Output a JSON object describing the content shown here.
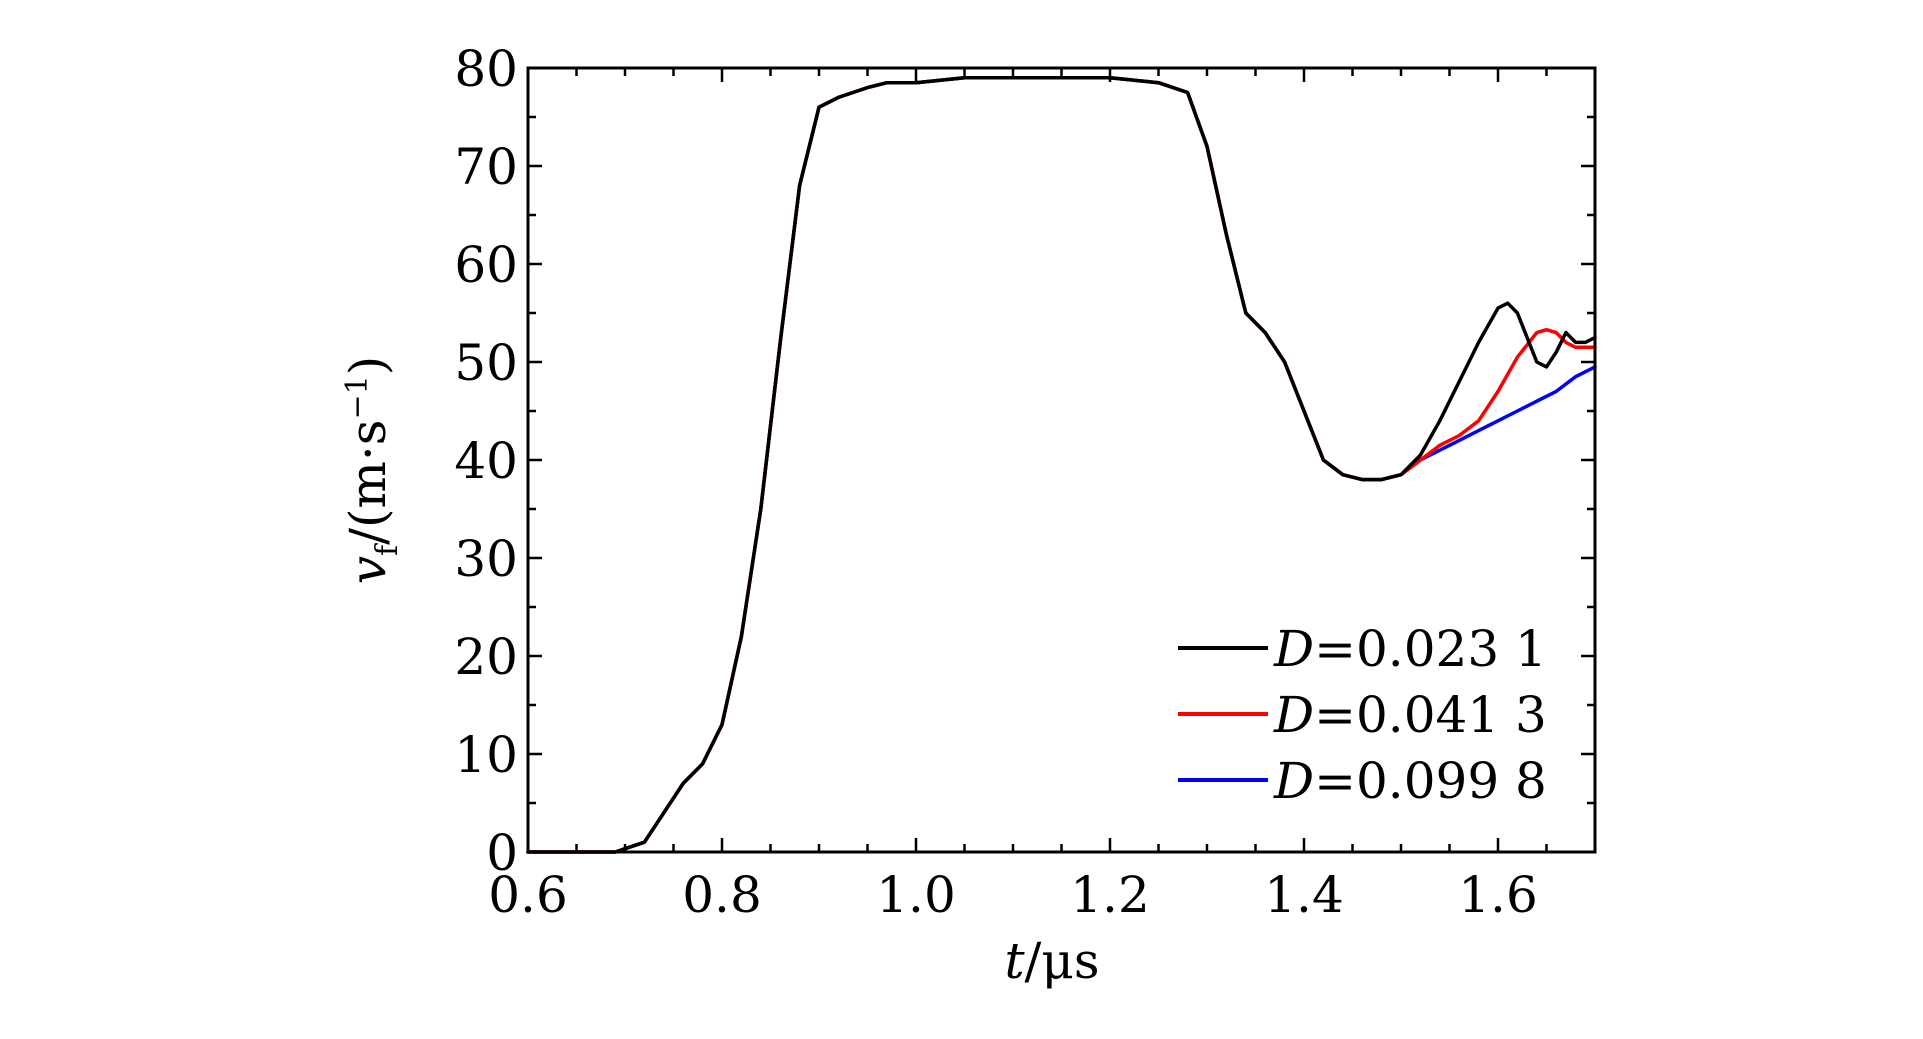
{
  "chart_data": {
    "type": "line",
    "xlabel": {
      "var": "t",
      "unit": "/μs"
    },
    "ylabel": {
      "var": "v",
      "sub": "f",
      "unit_pre": "/(m·s",
      "unit_sup": "−1",
      "unit_post": ")"
    },
    "xlim": [
      0.6,
      1.7
    ],
    "ylim": [
      0,
      80
    ],
    "xticks": [
      0.6,
      0.8,
      1.0,
      1.2,
      1.4,
      1.6
    ],
    "xtick_labels": [
      "0.6",
      "0.8",
      "1.0",
      "1.2",
      "1.4",
      "1.6"
    ],
    "yticks": [
      0,
      10,
      20,
      30,
      40,
      50,
      60,
      70,
      80
    ],
    "ytick_labels": [
      "0",
      "10",
      "20",
      "30",
      "40",
      "50",
      "60",
      "70",
      "80"
    ],
    "grid": false,
    "legend_position": "bottom-right",
    "series": [
      {
        "name": "D=0.023 1",
        "label_var": "D",
        "label_value": "=0.023 1",
        "color": "#000000",
        "x": [
          0.6,
          0.69,
          0.72,
          0.74,
          0.76,
          0.78,
          0.8,
          0.82,
          0.84,
          0.86,
          0.88,
          0.9,
          0.92,
          0.95,
          0.97,
          1.0,
          1.05,
          1.1,
          1.15,
          1.2,
          1.25,
          1.28,
          1.3,
          1.32,
          1.34,
          1.36,
          1.38,
          1.4,
          1.42,
          1.44,
          1.46,
          1.48,
          1.5,
          1.52,
          1.54,
          1.56,
          1.58,
          1.6,
          1.61,
          1.62,
          1.63,
          1.64,
          1.65,
          1.66,
          1.67,
          1.68,
          1.69,
          1.7
        ],
        "y": [
          0,
          0,
          1,
          4,
          7,
          9,
          13,
          22,
          35,
          52,
          68,
          76,
          77,
          78,
          78.5,
          78.5,
          79,
          79,
          79,
          79,
          78.5,
          77.5,
          72,
          63,
          55,
          53,
          50,
          45,
          40,
          38.5,
          38,
          38,
          38.5,
          40.5,
          44,
          48,
          52,
          55.5,
          56,
          55,
          52.5,
          50,
          49.5,
          51,
          53,
          52,
          52,
          52.5
        ]
      },
      {
        "name": "D=0.041 3",
        "label_var": "D",
        "label_value": "=0.041 3",
        "color": "#ff0000",
        "x": [
          0.6,
          0.69,
          0.72,
          0.74,
          0.76,
          0.78,
          0.8,
          0.82,
          0.84,
          0.86,
          0.88,
          0.9,
          0.92,
          0.95,
          0.97,
          1.0,
          1.05,
          1.1,
          1.15,
          1.2,
          1.25,
          1.28,
          1.3,
          1.32,
          1.34,
          1.36,
          1.38,
          1.4,
          1.42,
          1.44,
          1.46,
          1.48,
          1.5,
          1.52,
          1.54,
          1.56,
          1.58,
          1.6,
          1.62,
          1.64,
          1.65,
          1.66,
          1.67,
          1.68,
          1.7
        ],
        "y": [
          0,
          0,
          1,
          4,
          7,
          9,
          13,
          22,
          35,
          52,
          68,
          76,
          77,
          78,
          78.5,
          78.5,
          79,
          79,
          79,
          79,
          78.5,
          77.5,
          72,
          63,
          55,
          53,
          50,
          45,
          40,
          38.5,
          38,
          38,
          38.5,
          40,
          41.5,
          42.5,
          44,
          47,
          50.5,
          53,
          53.3,
          53,
          52,
          51.5,
          51.5
        ]
      },
      {
        "name": "D=0.099 8",
        "label_var": "D",
        "label_value": "=0.099 8",
        "color": "#0000ff",
        "x": [
          0.6,
          0.69,
          0.72,
          0.74,
          0.76,
          0.78,
          0.8,
          0.82,
          0.84,
          0.86,
          0.88,
          0.9,
          0.92,
          0.95,
          0.97,
          1.0,
          1.05,
          1.1,
          1.15,
          1.2,
          1.25,
          1.28,
          1.3,
          1.32,
          1.34,
          1.36,
          1.38,
          1.4,
          1.42,
          1.44,
          1.46,
          1.48,
          1.5,
          1.52,
          1.54,
          1.56,
          1.58,
          1.6,
          1.62,
          1.64,
          1.66,
          1.68,
          1.7
        ],
        "y": [
          0,
          0,
          1,
          4,
          7,
          9,
          13,
          22,
          35,
          52,
          68,
          76,
          77,
          78,
          78.5,
          78.5,
          79,
          79,
          79,
          79,
          78.5,
          77.5,
          72,
          63,
          55,
          53,
          50,
          45,
          40,
          38.5,
          38,
          38,
          38.5,
          40,
          41,
          42,
          43,
          44,
          45,
          46,
          47,
          48.5,
          49.5
        ]
      }
    ]
  }
}
